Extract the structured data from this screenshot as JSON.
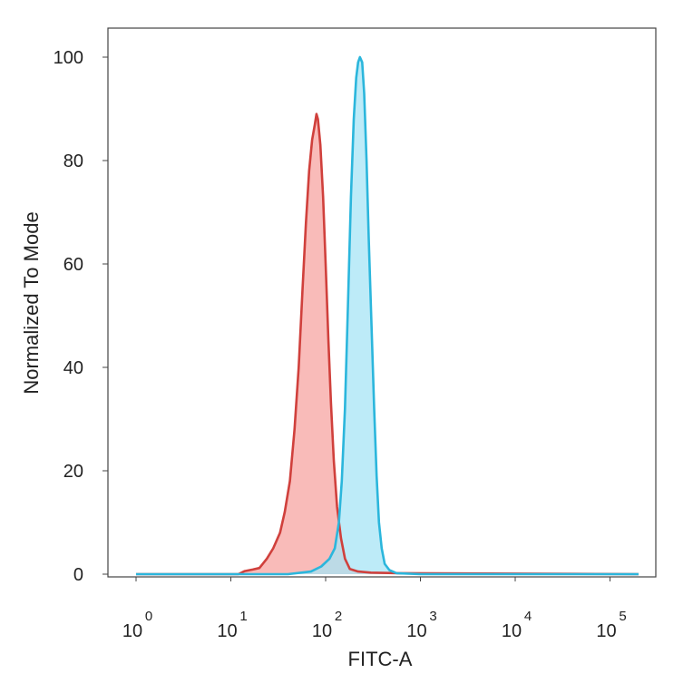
{
  "chart_data": {
    "type": "area",
    "title": "",
    "xlabel": "FITC-A",
    "ylabel": "Normalized To Mode",
    "x_scale": "log",
    "xlim": [
      1,
      200000
    ],
    "ylim": [
      0,
      105
    ],
    "grid": false,
    "legend": "none",
    "x_ticks": [
      {
        "base": "10",
        "exp": "0",
        "value": 1
      },
      {
        "base": "10",
        "exp": "1",
        "value": 10
      },
      {
        "base": "10",
        "exp": "2",
        "value": 100
      },
      {
        "base": "10",
        "exp": "3",
        "value": 1000
      },
      {
        "base": "10",
        "exp": "4",
        "value": 10000
      },
      {
        "base": "10",
        "exp": "5",
        "value": 100000
      }
    ],
    "y_ticks": [
      {
        "label": "0",
        "value": 0
      },
      {
        "label": "20",
        "value": 20
      },
      {
        "label": "40",
        "value": 40
      },
      {
        "label": "60",
        "value": 60
      },
      {
        "label": "80",
        "value": 80
      },
      {
        "label": "100",
        "value": 100
      }
    ],
    "series": [
      {
        "line_color": "#d0403c",
        "fill_color": "#f7a4a2",
        "points": [
          [
            1,
            0
          ],
          [
            12,
            0
          ],
          [
            14,
            0.6
          ],
          [
            17,
            0.9
          ],
          [
            20,
            1.2
          ],
          [
            24,
            3
          ],
          [
            28,
            5
          ],
          [
            33,
            8
          ],
          [
            37,
            12
          ],
          [
            42,
            18
          ],
          [
            47,
            28
          ],
          [
            52,
            40
          ],
          [
            57,
            55
          ],
          [
            62,
            68
          ],
          [
            67,
            78
          ],
          [
            72,
            84
          ],
          [
            77,
            87
          ],
          [
            80,
            89
          ],
          [
            83,
            88
          ],
          [
            88,
            83
          ],
          [
            94,
            73
          ],
          [
            100,
            60
          ],
          [
            107,
            45
          ],
          [
            114,
            33
          ],
          [
            122,
            22
          ],
          [
            132,
            13
          ],
          [
            145,
            7
          ],
          [
            160,
            3
          ],
          [
            180,
            1
          ],
          [
            220,
            0.5
          ],
          [
            300,
            0.3
          ],
          [
            600,
            0.2
          ],
          [
            200000,
            0
          ]
        ]
      },
      {
        "line_color": "#2bb6dc",
        "fill_color": "#a7e4f6",
        "points": [
          [
            1,
            0
          ],
          [
            40,
            0
          ],
          [
            70,
            0.5
          ],
          [
            90,
            1.5
          ],
          [
            110,
            3
          ],
          [
            125,
            5
          ],
          [
            138,
            10
          ],
          [
            148,
            18
          ],
          [
            160,
            32
          ],
          [
            172,
            52
          ],
          [
            185,
            73
          ],
          [
            198,
            88
          ],
          [
            210,
            96
          ],
          [
            220,
            99
          ],
          [
            230,
            100
          ],
          [
            243,
            99
          ],
          [
            255,
            93
          ],
          [
            270,
            80
          ],
          [
            285,
            65
          ],
          [
            305,
            48
          ],
          [
            325,
            32
          ],
          [
            345,
            19
          ],
          [
            365,
            10
          ],
          [
            390,
            5
          ],
          [
            420,
            2
          ],
          [
            470,
            0.8
          ],
          [
            560,
            0.2
          ],
          [
            1000,
            0
          ],
          [
            200000,
            0
          ]
        ]
      }
    ]
  }
}
